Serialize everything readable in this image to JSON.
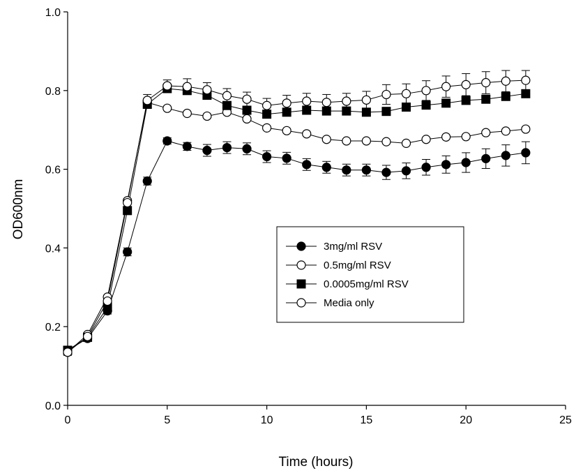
{
  "chart_data": {
    "type": "line",
    "title": "",
    "xlabel": "Time (hours)",
    "ylabel": "OD600nm",
    "xlim": [
      0,
      25
    ],
    "ylim": [
      0.0,
      1.0
    ],
    "x_ticks": [
      "0",
      "5",
      "10",
      "15",
      "20",
      "25"
    ],
    "y_ticks": [
      "0.0",
      "0.2",
      "0.4",
      "0.6",
      "0.8",
      "1.0"
    ],
    "x_tick_values": [
      0,
      5,
      10,
      15,
      20,
      25
    ],
    "y_tick_values": [
      0.0,
      0.2,
      0.4,
      0.6,
      0.8,
      1.0
    ],
    "grid": false,
    "legend_position": "center-right",
    "x": [
      0,
      1,
      2,
      3,
      4,
      5,
      6,
      7,
      8,
      9,
      10,
      11,
      12,
      13,
      14,
      15,
      16,
      17,
      18,
      19,
      20,
      21,
      22,
      23
    ],
    "series": [
      {
        "name": "3mg/ml RSV",
        "marker": "circle-filled",
        "values": [
          0.14,
          0.17,
          0.24,
          0.39,
          0.57,
          0.672,
          0.658,
          0.648,
          0.655,
          0.652,
          0.632,
          0.628,
          0.612,
          0.605,
          0.598,
          0.598,
          0.592,
          0.596,
          0.605,
          0.612,
          0.617,
          0.627,
          0.635,
          0.642
        ],
        "errors": [
          0.008,
          0.008,
          0.008,
          0.01,
          0.01,
          0.008,
          0.01,
          0.015,
          0.015,
          0.015,
          0.015,
          0.015,
          0.015,
          0.015,
          0.015,
          0.015,
          0.018,
          0.02,
          0.02,
          0.022,
          0.025,
          0.025,
          0.027,
          0.028
        ]
      },
      {
        "name": "0.5mg/ml RSV",
        "marker": "circle-open",
        "values": [
          0.135,
          0.18,
          0.275,
          0.52,
          0.77,
          0.755,
          0.742,
          0.735,
          0.745,
          0.728,
          0.705,
          0.698,
          0.69,
          0.676,
          0.672,
          0.672,
          0.67,
          0.666,
          0.676,
          0.682,
          0.683,
          0.693,
          0.697,
          0.702
        ]
      },
      {
        "name": "0.0005mg/ml RSV",
        "marker": "square-filled",
        "values": [
          0.14,
          0.173,
          0.25,
          0.495,
          0.765,
          0.805,
          0.8,
          0.788,
          0.762,
          0.75,
          0.74,
          0.745,
          0.75,
          0.748,
          0.748,
          0.745,
          0.747,
          0.758,
          0.763,
          0.768,
          0.775,
          0.778,
          0.785,
          0.792
        ]
      },
      {
        "name": "Media only",
        "marker": "circle-open",
        "values": [
          0.135,
          0.175,
          0.265,
          0.515,
          0.775,
          0.812,
          0.81,
          0.802,
          0.787,
          0.778,
          0.762,
          0.768,
          0.773,
          0.77,
          0.773,
          0.776,
          0.79,
          0.792,
          0.8,
          0.81,
          0.815,
          0.82,
          0.824,
          0.826
        ],
        "errors": [
          0.008,
          0.008,
          0.01,
          0.01,
          0.015,
          0.015,
          0.02,
          0.018,
          0.018,
          0.018,
          0.018,
          0.02,
          0.02,
          0.02,
          0.02,
          0.022,
          0.025,
          0.025,
          0.025,
          0.027,
          0.028,
          0.028,
          0.027,
          0.025
        ]
      }
    ]
  }
}
